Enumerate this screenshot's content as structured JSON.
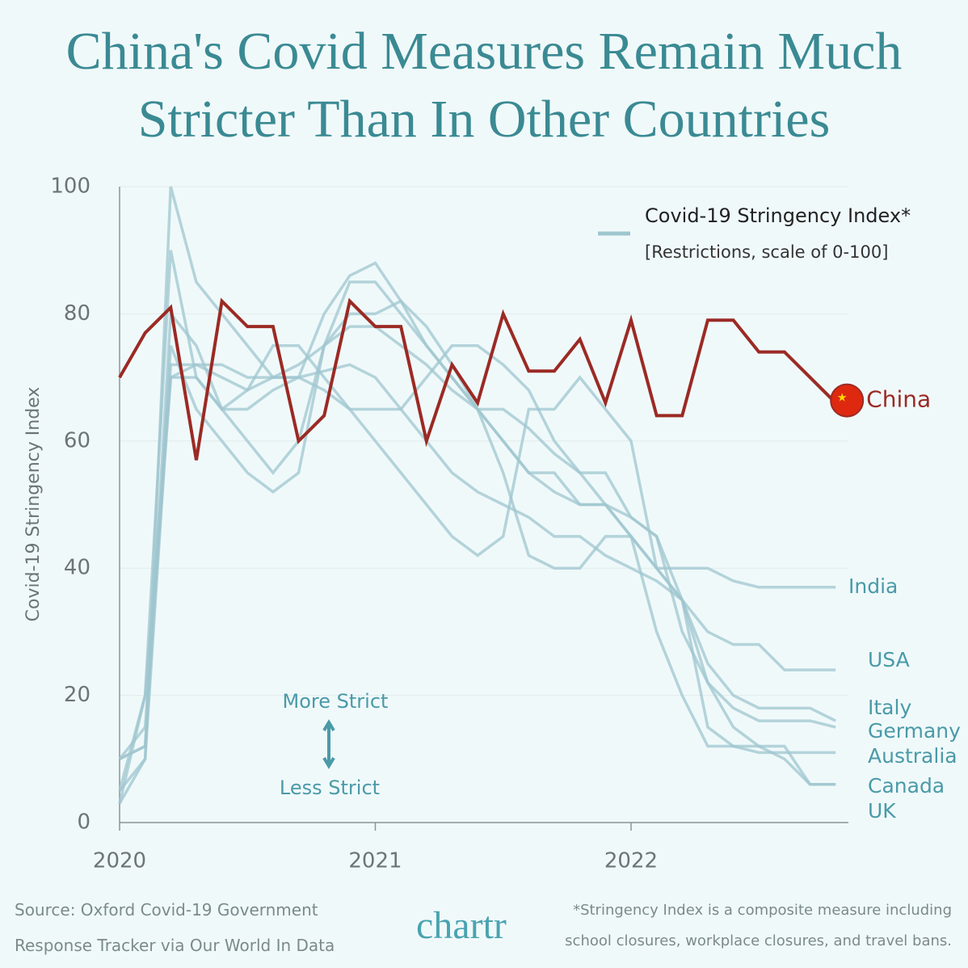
{
  "chart_data": {
    "type": "line",
    "title": "China's Covid Measures Remain Much Stricter Than In Other Countries",
    "y_label": "Covid-19 Stringency Index",
    "legend_title": "Covid-19 Stringency Index*",
    "legend_subtitle": "[Restrictions, scale of 0-100]",
    "annotations": [
      "More Strict",
      "Less Strict"
    ],
    "source": "Source: Oxford Covid-19 Government Response Tracker via Our World In Data",
    "footnote": "*Stringency Index is a composite measure including school closures, workplace closures, and travel bans.",
    "logo": "chartr",
    "x": [
      2020.0,
      2020.1,
      2020.2,
      2020.3,
      2020.4,
      2020.5,
      2020.6,
      2020.7,
      2020.8,
      2020.9,
      2021.0,
      2021.1,
      2021.2,
      2021.3,
      2021.4,
      2021.5,
      2021.6,
      2021.7,
      2021.8,
      2021.9,
      2022.0,
      2022.1,
      2022.2,
      2022.3,
      2022.4,
      2022.5,
      2022.6,
      2022.7,
      2022.8
    ],
    "series": [
      {
        "name": "India",
        "color": "#9fc6cf",
        "values": [
          5,
          10,
          100,
          85,
          80,
          75,
          70,
          70,
          68,
          65,
          65,
          65,
          70,
          75,
          75,
          72,
          68,
          60,
          55,
          50,
          45,
          40,
          40,
          40,
          38,
          37,
          37,
          37,
          37
        ]
      },
      {
        "name": "USA",
        "color": "#9fc6cf",
        "values": [
          3,
          10,
          72,
          72,
          70,
          68,
          70,
          70,
          71,
          72,
          70,
          65,
          60,
          55,
          52,
          50,
          48,
          45,
          45,
          42,
          40,
          38,
          35,
          30,
          28,
          28,
          24,
          24,
          24
        ]
      },
      {
        "name": "Italy",
        "color": "#9fc6cf",
        "values": [
          5,
          20,
          90,
          70,
          65,
          60,
          55,
          60,
          75,
          80,
          80,
          82,
          78,
          72,
          65,
          60,
          55,
          55,
          50,
          50,
          45,
          40,
          35,
          25,
          20,
          18,
          18,
          18,
          16
        ]
      },
      {
        "name": "Germany",
        "color": "#9fc6cf",
        "values": [
          10,
          12,
          75,
          65,
          60,
          55,
          52,
          55,
          75,
          85,
          85,
          80,
          75,
          70,
          65,
          60,
          55,
          52,
          50,
          50,
          48,
          45,
          30,
          22,
          18,
          16,
          16,
          16,
          15
        ]
      },
      {
        "name": "Australia",
        "color": "#9fc6cf",
        "values": [
          10,
          15,
          70,
          70,
          65,
          68,
          75,
          75,
          70,
          65,
          60,
          55,
          50,
          45,
          42,
          45,
          65,
          65,
          70,
          65,
          60,
          40,
          35,
          15,
          12,
          11,
          11,
          11,
          11
        ]
      },
      {
        "name": "Canada",
        "color": "#9fc6cf",
        "values": [
          3,
          20,
          70,
          72,
          72,
          70,
          70,
          72,
          75,
          78,
          78,
          75,
          72,
          68,
          65,
          65,
          62,
          58,
          55,
          55,
          48,
          45,
          35,
          22,
          15,
          12,
          10,
          6,
          6
        ]
      },
      {
        "name": "UK",
        "color": "#9fc6cf",
        "values": [
          10,
          12,
          80,
          75,
          65,
          65,
          68,
          70,
          80,
          86,
          88,
          82,
          75,
          70,
          65,
          55,
          42,
          40,
          40,
          45,
          45,
          30,
          20,
          12,
          12,
          12,
          12,
          6,
          6
        ]
      },
      {
        "name": "China",
        "color": "#9b2a24",
        "values": [
          70,
          77,
          81,
          57,
          82,
          78,
          78,
          60,
          64,
          82,
          78,
          78,
          60,
          72,
          66,
          80,
          71,
          71,
          76,
          66,
          79,
          64,
          64,
          79,
          79,
          74,
          74,
          70,
          66
        ]
      }
    ],
    "xlim": [
      2020,
      2022.85
    ],
    "ylim": [
      0,
      100
    ],
    "xticks": [
      2020,
      2021,
      2022
    ],
    "yticks": [
      0,
      20,
      40,
      60,
      80,
      100
    ],
    "grid": true
  }
}
